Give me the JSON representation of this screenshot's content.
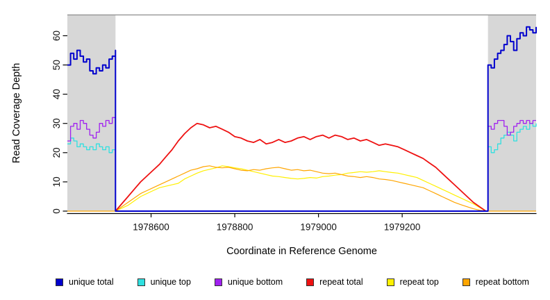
{
  "chart_data": {
    "type": "line",
    "title": "",
    "xlabel": "Coordinate in Reference Genome",
    "ylabel": "Read Coverage Depth",
    "xlim": [
      1978400,
      1979520
    ],
    "ylim": [
      0,
      67
    ],
    "x_ticks": [
      1978600,
      1978800,
      1979000,
      1979200
    ],
    "y_ticks": [
      0,
      10,
      20,
      30,
      40,
      50,
      60
    ],
    "grid": false,
    "legend_position": "bottom",
    "colors": {
      "shaded_region": "#D7D7D7",
      "plot_border": "#8C8C8C",
      "axis": "#000000"
    },
    "shaded_regions": [
      {
        "x0": 1978400,
        "x1": 1978515,
        "color": "#D7D7D7"
      },
      {
        "x0": 1979405,
        "x1": 1979520,
        "color": "#D7D7D7"
      }
    ],
    "legend": [
      {
        "label": "unique total",
        "color": "#0000CD"
      },
      {
        "label": "unique top",
        "color": "#2FE0E0"
      },
      {
        "label": "unique bottom",
        "color": "#A020F0"
      },
      {
        "label": "repeat total",
        "color": "#EE1111"
      },
      {
        "label": "repeat top",
        "color": "#FFF000"
      },
      {
        "label": "repeat bottom",
        "color": "#FFA500"
      }
    ],
    "series": [
      {
        "name": "repeat top",
        "color": "#FFF000",
        "width": 1.2,
        "step": false,
        "segments": [
          {
            "x_start": 1978515,
            "x_step": 15,
            "values": [
              0,
              1,
              2,
              3.5,
              5,
              6,
              7,
              8,
              8.5,
              9,
              9.5,
              11,
              12,
              13,
              13.8,
              14.3,
              14.8,
              15.5,
              15.2,
              14.8,
              14.5,
              14,
              13.5,
              13,
              12.5,
              12,
              11.8,
              11.5,
              11.2,
              11,
              11.2,
              11.5,
              11.3,
              11.8,
              12,
              12.3,
              12.5,
              13,
              13.2,
              13.5,
              13.3,
              13.5,
              13.8,
              13.5,
              13.2,
              13,
              12.5,
              12,
              11.5,
              10.5,
              9.5,
              8.5,
              7.5,
              6.5,
              5.5,
              4.5,
              3.5,
              2.5,
              1.2,
              0
            ]
          }
        ]
      },
      {
        "name": "repeat bottom",
        "color": "#FFA500",
        "width": 1.2,
        "step": false,
        "segments": [
          {
            "x_start": 1978400,
            "x_step": 115,
            "values": [
              0,
              0
            ]
          },
          {
            "x_start": 1978515,
            "x_step": 15,
            "values": [
              0,
              1.5,
              3,
              4.5,
              6,
              7,
              8,
              9,
              10,
              11,
              12,
              13,
              14,
              14.5,
              15.2,
              15.5,
              15,
              14.8,
              15,
              14.5,
              14,
              13.8,
              14.2,
              14,
              14.5,
              14.8,
              15,
              14.5,
              14,
              14.2,
              13.8,
              14,
              13.5,
              13,
              12.8,
              13,
              12.5,
              12,
              11.8,
              11.5,
              11.8,
              11.5,
              11,
              10.8,
              10.5,
              10,
              9.5,
              9,
              8.5,
              8,
              7,
              6,
              5,
              4,
              3,
              2.2,
              1.5,
              0.8,
              0.3,
              0
            ]
          },
          {
            "x_start": 1979405,
            "x_step": 115,
            "values": [
              0,
              0
            ]
          }
        ]
      },
      {
        "name": "repeat total",
        "color": "#EE1111",
        "width": 1.8,
        "step": false,
        "segments": [
          {
            "x_start": 1978515,
            "x_step": 15,
            "values": [
              0,
              2.5,
              5,
              7.5,
              10,
              12,
              14,
              16,
              18.5,
              21,
              24,
              26.5,
              28.5,
              30,
              29.5,
              28.5,
              29,
              28,
              27,
              25.5,
              25,
              24,
              23.5,
              24.5,
              23,
              23.5,
              24.5,
              23.5,
              24,
              25,
              25.5,
              24.5,
              25.5,
              26,
              25,
              26,
              25.5,
              24.5,
              25,
              24,
              24.5,
              23.5,
              22.5,
              23,
              22.5,
              22,
              21,
              20,
              19,
              18,
              16.5,
              15,
              13,
              11,
              9,
              7,
              5,
              3,
              1.5,
              0
            ]
          }
        ]
      },
      {
        "name": "unique top",
        "color": "#2FE0E0",
        "width": 1.3,
        "step": true,
        "segments": [
          {
            "x_start": 1978400,
            "x_step": 7.6667,
            "values": [
              23,
              25,
              24,
              22,
              23,
              22,
              21,
              22,
              21,
              23,
              22,
              21,
              22,
              20,
              21,
              24
            ]
          },
          {
            "x_start": 1978515,
            "x_step": 890,
            "values": [
              0,
              0
            ]
          },
          {
            "x_start": 1979405,
            "x_step": 7.6667,
            "values": [
              22,
              20,
              21,
              23,
              25,
              26,
              27,
              26,
              24,
              27,
              28,
              29,
              28,
              30,
              29,
              30
            ]
          }
        ]
      },
      {
        "name": "unique bottom",
        "color": "#A020F0",
        "width": 1.3,
        "step": true,
        "segments": [
          {
            "x_start": 1978400,
            "x_step": 7.6667,
            "values": [
              24,
              29,
              30,
              28,
              31,
              30,
              28,
              26,
              25,
              27,
              30,
              29,
              31,
              30,
              32,
              31
            ]
          },
          {
            "x_start": 1978515,
            "x_step": 890,
            "values": [
              0,
              0
            ]
          },
          {
            "x_start": 1979405,
            "x_step": 7.6667,
            "values": [
              29,
              28,
              30,
              31,
              31,
              29,
              26,
              27,
              29,
              30,
              31,
              30,
              31,
              30,
              31,
              31
            ]
          }
        ]
      },
      {
        "name": "unique total",
        "color": "#0000CD",
        "width": 2,
        "step": true,
        "segments": [
          {
            "x_start": 1978400,
            "x_step": 7.6667,
            "values": [
              50,
              54,
              52,
              55,
              53,
              51,
              52,
              48,
              47,
              49,
              48,
              50,
              49,
              52,
              53,
              55
            ]
          },
          {
            "x_start": 1978515,
            "x_step": 890,
            "values": [
              0,
              0
            ]
          },
          {
            "x_start": 1979405,
            "x_step": 7.6667,
            "values": [
              50,
              49,
              52,
              54,
              55,
              57,
              60,
              58,
              55,
              59,
              61,
              60,
              63,
              62,
              61,
              63
            ]
          }
        ]
      }
    ]
  }
}
